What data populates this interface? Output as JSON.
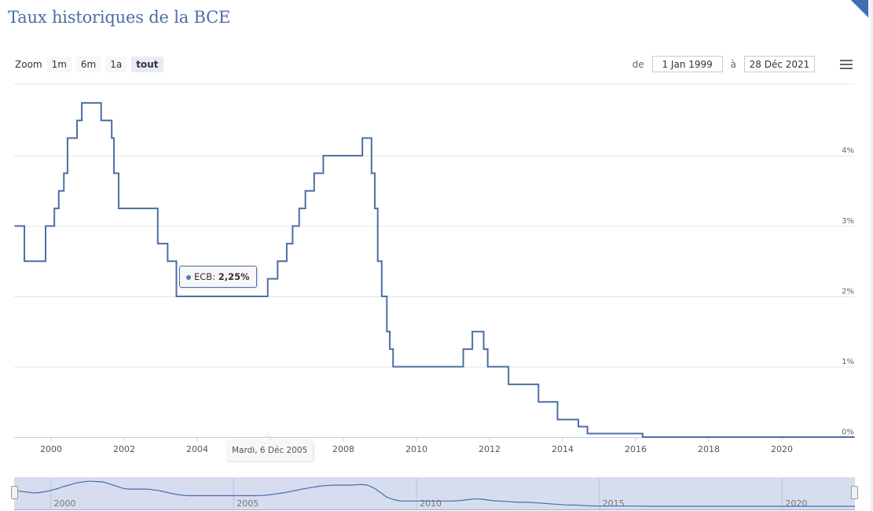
{
  "title": "Taux historiques de la BCE",
  "zoom": {
    "label": "Zoom",
    "buttons": [
      "1m",
      "6m",
      "1a",
      "tout"
    ],
    "active": "tout"
  },
  "range": {
    "from_label": "de",
    "from_value": "1 Jan 1999",
    "to_label": "à",
    "to_value": "28 Déc 2021"
  },
  "menu_icon": "hamburger-menu-icon",
  "tooltip": {
    "series": "ECB",
    "value": "2,25%",
    "date": "Mardi, 6 Déc 2005"
  },
  "colors": {
    "line": "#4a6fa5",
    "grid": "#e6e6e6",
    "navigator_bg": "#d5ddef",
    "title": "#4a6fa5"
  },
  "chart_data": {
    "type": "line",
    "step": true,
    "title": "Taux historiques de la BCE",
    "xlabel": "",
    "ylabel": "",
    "series": [
      {
        "name": "ECB",
        "points": [
          [
            1999.0,
            3.0
          ],
          [
            1999.27,
            2.5
          ],
          [
            1999.85,
            3.0
          ],
          [
            2000.09,
            3.25
          ],
          [
            2000.21,
            3.5
          ],
          [
            2000.35,
            3.75
          ],
          [
            2000.45,
            4.25
          ],
          [
            2000.71,
            4.5
          ],
          [
            2000.84,
            4.75
          ],
          [
            2001.37,
            4.5
          ],
          [
            2001.66,
            4.25
          ],
          [
            2001.72,
            3.75
          ],
          [
            2001.85,
            3.25
          ],
          [
            2002.92,
            2.75
          ],
          [
            2003.19,
            2.5
          ],
          [
            2003.43,
            2.0
          ],
          [
            2005.93,
            2.25
          ],
          [
            2006.2,
            2.5
          ],
          [
            2006.45,
            2.75
          ],
          [
            2006.61,
            3.0
          ],
          [
            2006.79,
            3.25
          ],
          [
            2006.96,
            3.5
          ],
          [
            2007.2,
            3.75
          ],
          [
            2007.45,
            4.0
          ],
          [
            2008.52,
            4.25
          ],
          [
            2008.77,
            3.75
          ],
          [
            2008.86,
            3.25
          ],
          [
            2008.94,
            2.5
          ],
          [
            2009.05,
            2.0
          ],
          [
            2009.19,
            1.5
          ],
          [
            2009.27,
            1.25
          ],
          [
            2009.36,
            1.0
          ],
          [
            2011.28,
            1.25
          ],
          [
            2011.53,
            1.5
          ],
          [
            2011.84,
            1.25
          ],
          [
            2011.95,
            1.0
          ],
          [
            2012.52,
            0.75
          ],
          [
            2013.34,
            0.5
          ],
          [
            2013.86,
            0.25
          ],
          [
            2014.43,
            0.15
          ],
          [
            2014.68,
            0.05
          ],
          [
            2016.19,
            0.0
          ],
          [
            2021.99,
            0.0
          ]
        ]
      }
    ],
    "x_ticks": [
      "2000",
      "2002",
      "2004",
      "2006",
      "2008",
      "2010",
      "2012",
      "2014",
      "2016",
      "2018",
      "2020"
    ],
    "y_ticks": [
      "0%",
      "1%",
      "2%",
      "3%",
      "4%"
    ],
    "xlim": [
      1999.0,
      2021.99
    ],
    "ylim": [
      0,
      4.75
    ],
    "grid": true,
    "navigator_ticks": [
      "2000",
      "2005",
      "2010",
      "2015",
      "2020"
    ]
  }
}
